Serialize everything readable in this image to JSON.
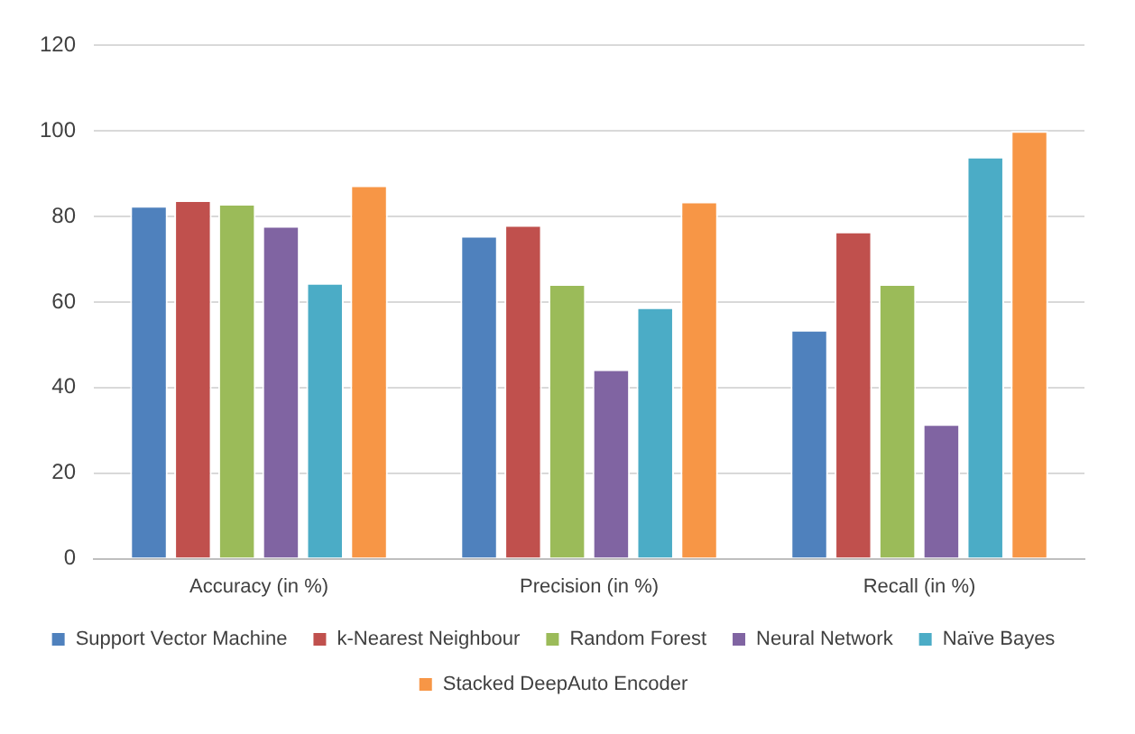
{
  "chart_data": {
    "type": "bar",
    "categories": [
      "Accuracy (in %)",
      "Precision (in %)",
      "Recall (in %)"
    ],
    "series": [
      {
        "name": "Support Vector Machine",
        "color": "#4f81bd",
        "values": [
          82.5,
          75.5,
          53.5
        ]
      },
      {
        "name": "k-Nearest Neighbour",
        "color": "#c0504d",
        "values": [
          83.8,
          78,
          76.5
        ]
      },
      {
        "name": "Random Forest",
        "color": "#9bbb59",
        "values": [
          83,
          64.2,
          64.2
        ]
      },
      {
        "name": "Neural Network",
        "color": "#8064a2",
        "values": [
          77.8,
          44.3,
          31.5
        ]
      },
      {
        "name": "Naïve Bayes",
        "color": "#4bacc6",
        "values": [
          64.5,
          58.8,
          94
        ]
      },
      {
        "name": "Stacked DeepAuto Encoder",
        "color": "#f79646",
        "values": [
          87.3,
          83.5,
          100
        ]
      }
    ],
    "ylim": [
      0,
      120
    ],
    "yticks": [
      0,
      20,
      40,
      60,
      80,
      100,
      120
    ],
    "grid": "y",
    "legend": "bottom"
  }
}
